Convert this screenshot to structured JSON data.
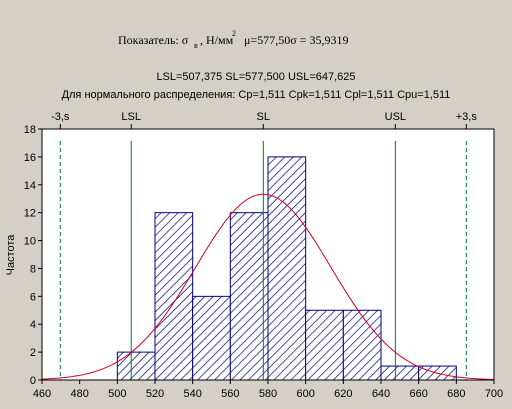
{
  "chart_data": {
    "type": "bar",
    "title": "Показатель: σ",
    "title_sub": "в",
    "title_unit": ", Н/мм",
    "title_sup": "2",
    "title_stats": "μ=577,50σ = 35,9319",
    "subtitle1": "LSL=507,375 SL=577,500 USL=647,625",
    "subtitle2": "Для нормального распределения: Cp=1,511 Cpk=1,511 Cpl=1,511 Cpu=1,511",
    "ylabel": "Частота",
    "xlabel": "",
    "xlim": [
      460,
      700
    ],
    "ylim": [
      0,
      18
    ],
    "x_ticks": [
      460,
      480,
      500,
      520,
      540,
      560,
      580,
      600,
      620,
      640,
      660,
      680,
      700
    ],
    "y_ticks": [
      0,
      2,
      4,
      6,
      8,
      10,
      12,
      14,
      16,
      18
    ],
    "bins": [
      {
        "from": 500,
        "to": 520,
        "count": 2
      },
      {
        "from": 520,
        "to": 540,
        "count": 12
      },
      {
        "from": 540,
        "to": 560,
        "count": 6
      },
      {
        "from": 560,
        "to": 580,
        "count": 12
      },
      {
        "from": 580,
        "to": 600,
        "count": 16
      },
      {
        "from": 600,
        "to": 620,
        "count": 5
      },
      {
        "from": 620,
        "to": 640,
        "count": 5
      },
      {
        "from": 640,
        "to": 660,
        "count": 1
      },
      {
        "from": 660,
        "to": 680,
        "count": 1
      }
    ],
    "normal_curve": {
      "mean": 577.5,
      "sd": 35.9319,
      "n": 60,
      "bin_width": 20,
      "color": "#d6001c"
    },
    "spec_lines": [
      {
        "label": "-3,s",
        "x": 469.7,
        "style": "dashed"
      },
      {
        "label": "LSL",
        "x": 507.375,
        "style": "solid"
      },
      {
        "label": "SL",
        "x": 577.5,
        "style": "solid"
      },
      {
        "label": "USL",
        "x": 647.625,
        "style": "solid"
      },
      {
        "label": "+3,s",
        "x": 685.3,
        "style": "dashed"
      }
    ],
    "colors": {
      "bar_hatch": "#00007f",
      "bar_fill": "#ffffff",
      "spec_line": "#007a2e",
      "curve": "#d6001c",
      "frame": "#000000"
    }
  }
}
